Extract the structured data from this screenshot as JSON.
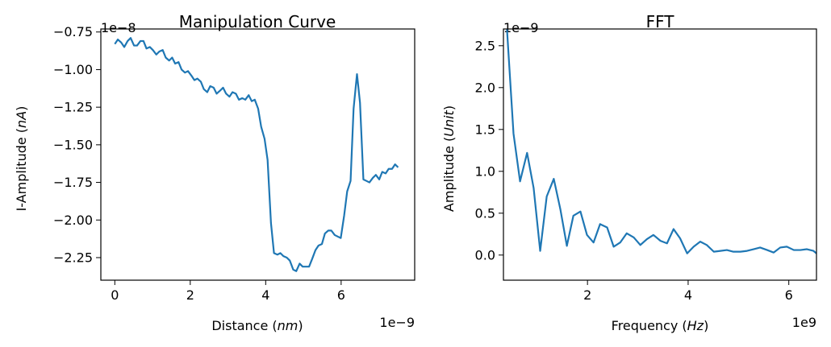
{
  "colors": {
    "line": "#1f77b4",
    "axes": "#000000",
    "background": "#ffffff"
  },
  "chart_data": [
    {
      "type": "line",
      "title": "Manipulation Curve",
      "xlabel_prefix": "Distance (",
      "xlabel_unit": "nm",
      "xlabel_suffix": ")",
      "ylabel_prefix": "I-Amplitude (",
      "ylabel_unit": "nA",
      "ylabel_suffix": ")",
      "x_offset_label": "1e−9",
      "y_offset_label": "1e−8",
      "xlim": [
        -0.37,
        7.95
      ],
      "ylim": [
        -2.4,
        -0.73
      ],
      "xticks": [
        0,
        2,
        4,
        6
      ],
      "xtick_labels": [
        "0",
        "2",
        "4",
        "6"
      ],
      "yticks": [
        -0.75,
        -1.0,
        -1.25,
        -1.5,
        -1.75,
        -2.0,
        -2.25
      ],
      "ytick_labels": [
        "−0.75",
        "−1.00",
        "−1.25",
        "−1.50",
        "−1.75",
        "−2.00",
        "−2.25"
      ],
      "grid": false,
      "series": [
        {
          "x": [
            0.0,
            0.08,
            0.17,
            0.25,
            0.34,
            0.42,
            0.51,
            0.59,
            0.68,
            0.76,
            0.84,
            0.93,
            1.01,
            1.1,
            1.18,
            1.27,
            1.35,
            1.44,
            1.52,
            1.6,
            1.69,
            1.77,
            1.86,
            1.94,
            2.03,
            2.11,
            2.19,
            2.28,
            2.36,
            2.45,
            2.53,
            2.62,
            2.7,
            2.79,
            2.87,
            2.95,
            3.04,
            3.12,
            3.21,
            3.29,
            3.38,
            3.46,
            3.55,
            3.63,
            3.71,
            3.8,
            3.88,
            3.97,
            4.05,
            4.14,
            4.22,
            4.31,
            4.39,
            4.47,
            4.56,
            4.64,
            4.73,
            4.81,
            4.9,
            4.98,
            5.07,
            5.15,
            5.23,
            5.32,
            5.4,
            5.49,
            5.57,
            5.66,
            5.74,
            5.83,
            5.91,
            5.99,
            6.08,
            6.16,
            6.25,
            6.33,
            6.42,
            6.5,
            6.59,
            6.67,
            6.75,
            6.84,
            6.92,
            7.01,
            7.09,
            7.18,
            7.26,
            7.35,
            7.43,
            7.51
          ],
          "y": [
            -0.83,
            -0.8,
            -0.82,
            -0.85,
            -0.81,
            -0.79,
            -0.84,
            -0.84,
            -0.81,
            -0.81,
            -0.86,
            -0.85,
            -0.87,
            -0.9,
            -0.88,
            -0.87,
            -0.92,
            -0.94,
            -0.92,
            -0.96,
            -0.95,
            -1.0,
            -1.02,
            -1.01,
            -1.04,
            -1.07,
            -1.06,
            -1.08,
            -1.13,
            -1.15,
            -1.11,
            -1.12,
            -1.16,
            -1.14,
            -1.12,
            -1.16,
            -1.18,
            -1.15,
            -1.16,
            -1.2,
            -1.19,
            -1.2,
            -1.17,
            -1.21,
            -1.2,
            -1.26,
            -1.38,
            -1.46,
            -1.6,
            -2.02,
            -2.22,
            -2.23,
            -2.22,
            -2.24,
            -2.25,
            -2.27,
            -2.33,
            -2.34,
            -2.29,
            -2.31,
            -2.31,
            -2.31,
            -2.26,
            -2.2,
            -2.17,
            -2.16,
            -2.09,
            -2.07,
            -2.07,
            -2.1,
            -2.11,
            -2.12,
            -1.97,
            -1.81,
            -1.74,
            -1.26,
            -1.03,
            -1.22,
            -1.73,
            -1.74,
            -1.75,
            -1.72,
            -1.7,
            -1.73,
            -1.68,
            -1.69,
            -1.66,
            -1.66,
            -1.63,
            -1.65
          ]
        }
      ]
    },
    {
      "type": "line",
      "title": "FFT",
      "xlabel_prefix": "Frequency (",
      "xlabel_unit": "Hz",
      "xlabel_suffix": ")",
      "ylabel_prefix": "Amplitude (",
      "ylabel_unit": "Unit",
      "ylabel_suffix": ")",
      "x_offset_label": "1e9",
      "y_offset_label": "1e−9",
      "xlim": [
        0.33,
        6.55
      ],
      "ylim": [
        -0.3,
        2.7
      ],
      "xticks": [
        2,
        4,
        6
      ],
      "xtick_labels": [
        "2",
        "4",
        "6"
      ],
      "yticks": [
        0.0,
        0.5,
        1.0,
        1.5,
        2.0,
        2.5
      ],
      "ytick_labels": [
        "0.0",
        "0.5",
        "1.0",
        "1.5",
        "2.0",
        "2.5"
      ],
      "grid": false,
      "series": [
        {
          "x": [
            0.33,
            0.4,
            0.53,
            0.66,
            0.8,
            0.93,
            1.06,
            1.19,
            1.33,
            1.46,
            1.59,
            1.72,
            1.86,
            1.99,
            2.12,
            2.25,
            2.39,
            2.52,
            2.65,
            2.78,
            2.92,
            3.05,
            3.18,
            3.31,
            3.45,
            3.58,
            3.71,
            3.84,
            3.98,
            4.11,
            4.24,
            4.37,
            4.51,
            4.64,
            4.77,
            4.9,
            5.04,
            5.17,
            5.3,
            5.43,
            5.57,
            5.7,
            5.83,
            5.96,
            6.1,
            6.23,
            6.36,
            6.49,
            6.55
          ],
          "y": [
            3.6,
            2.7,
            1.45,
            0.88,
            1.22,
            0.8,
            0.05,
            0.7,
            0.91,
            0.55,
            0.11,
            0.47,
            0.52,
            0.24,
            0.15,
            0.37,
            0.33,
            0.1,
            0.15,
            0.26,
            0.21,
            0.12,
            0.19,
            0.24,
            0.17,
            0.14,
            0.31,
            0.2,
            0.02,
            0.1,
            0.16,
            0.12,
            0.04,
            0.05,
            0.06,
            0.04,
            0.04,
            0.05,
            0.07,
            0.09,
            0.06,
            0.03,
            0.09,
            0.1,
            0.06,
            0.06,
            0.07,
            0.05,
            0.02
          ]
        }
      ]
    }
  ]
}
